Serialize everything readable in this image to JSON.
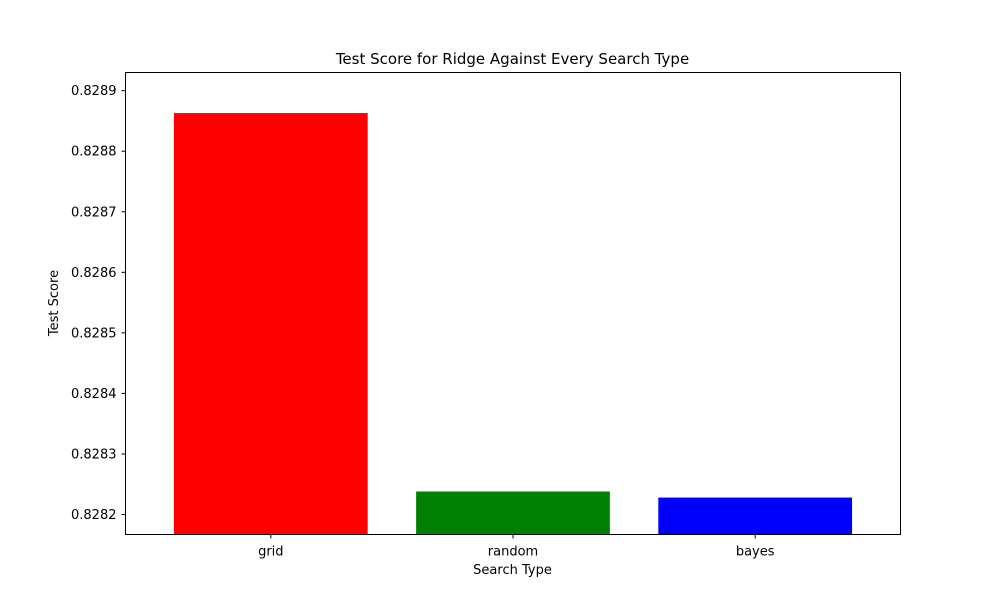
{
  "chart_data": {
    "type": "bar",
    "title": "Test Score for Ridge Against Every Search Type",
    "xlabel": "Search Type",
    "ylabel": "Test Score",
    "categories": [
      "grid",
      "random",
      "bayes"
    ],
    "values": [
      0.828863,
      0.828238,
      0.828228
    ],
    "colors": [
      "#ff0000",
      "#008000",
      "#0000ff"
    ],
    "ylim": [
      0.828167,
      0.82893
    ],
    "yticks": [
      0.8282,
      0.8283,
      0.8284,
      0.8285,
      0.8286,
      0.8287,
      0.8288,
      0.8289
    ],
    "ytick_labels": [
      "0.8282",
      "0.8283",
      "0.8284",
      "0.8285",
      "0.8286",
      "0.8287",
      "0.8288",
      "0.8289"
    ],
    "grid": false
  }
}
